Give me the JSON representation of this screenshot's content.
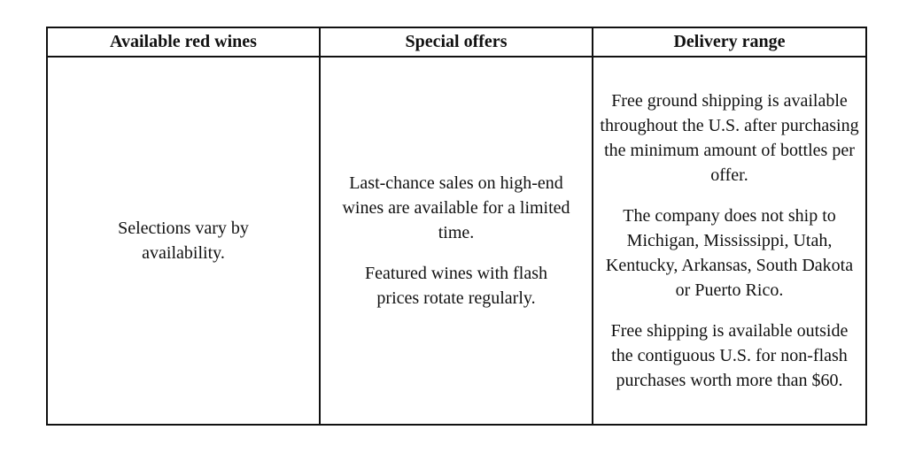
{
  "table": {
    "headers": [
      "Available red wines",
      "Special offers",
      "Delivery range"
    ],
    "cells": [
      [
        "Selections vary by availability."
      ],
      [
        "Last-chance sales on high-end wines are available for a limited time.",
        "Featured wines with flash prices rotate regularly."
      ],
      [
        "Free ground shipping is available throughout the U.S. after purchasing the minimum amount of bottles per offer.",
        "The company does not ship to Michigan, Mississippi, Utah, Kentucky, Arkansas, South Dakota or Puerto Rico.",
        "Free shipping is available outside the contiguous U.S. for non-flash purchases worth more than $60."
      ]
    ]
  }
}
